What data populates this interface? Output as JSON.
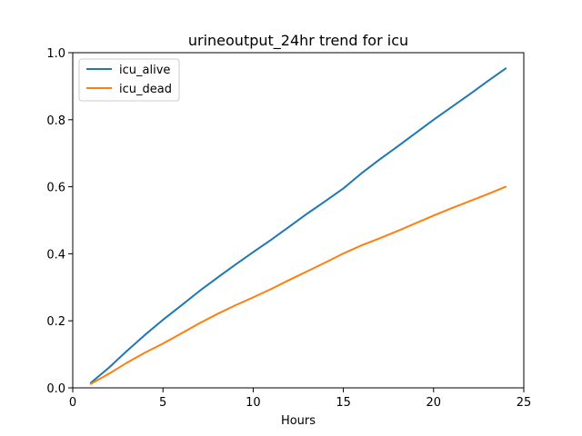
{
  "chart_data": {
    "type": "line",
    "title": "urineoutput_24hr trend for icu",
    "xlabel": "Hours",
    "ylabel": "",
    "xlim": [
      0,
      25
    ],
    "ylim": [
      0,
      1
    ],
    "x_ticks": [
      0,
      5,
      10,
      15,
      20,
      25
    ],
    "y_ticks": [
      0.0,
      0.2,
      0.4,
      0.6,
      0.8,
      1.0
    ],
    "x_tick_labels": [
      "0",
      "5",
      "10",
      "15",
      "20",
      "25"
    ],
    "y_tick_labels": [
      "0.0",
      "0.2",
      "0.4",
      "0.6",
      "0.8",
      "1.0"
    ],
    "grid": false,
    "legend_position": "top-left",
    "x": [
      1,
      2,
      3,
      4,
      5,
      6,
      7,
      8,
      9,
      10,
      11,
      12,
      13,
      14,
      15,
      16,
      17,
      18,
      19,
      20,
      21,
      22,
      23,
      24
    ],
    "series": [
      {
        "name": "icu_alive",
        "color": "#1f77b4",
        "values": [
          0.015,
          0.06,
          0.11,
          0.158,
          0.203,
          0.245,
          0.288,
          0.328,
          0.367,
          0.405,
          0.442,
          0.481,
          0.52,
          0.557,
          0.595,
          0.64,
          0.681,
          0.72,
          0.76,
          0.8,
          0.838,
          0.876,
          0.915,
          0.953
        ]
      },
      {
        "name": "icu_dead",
        "color": "#ff7f0e",
        "values": [
          0.012,
          0.042,
          0.075,
          0.105,
          0.132,
          0.162,
          0.192,
          0.22,
          0.246,
          0.27,
          0.295,
          0.322,
          0.348,
          0.374,
          0.401,
          0.425,
          0.446,
          0.468,
          0.491,
          0.514,
          0.536,
          0.557,
          0.578,
          0.6
        ]
      }
    ]
  }
}
